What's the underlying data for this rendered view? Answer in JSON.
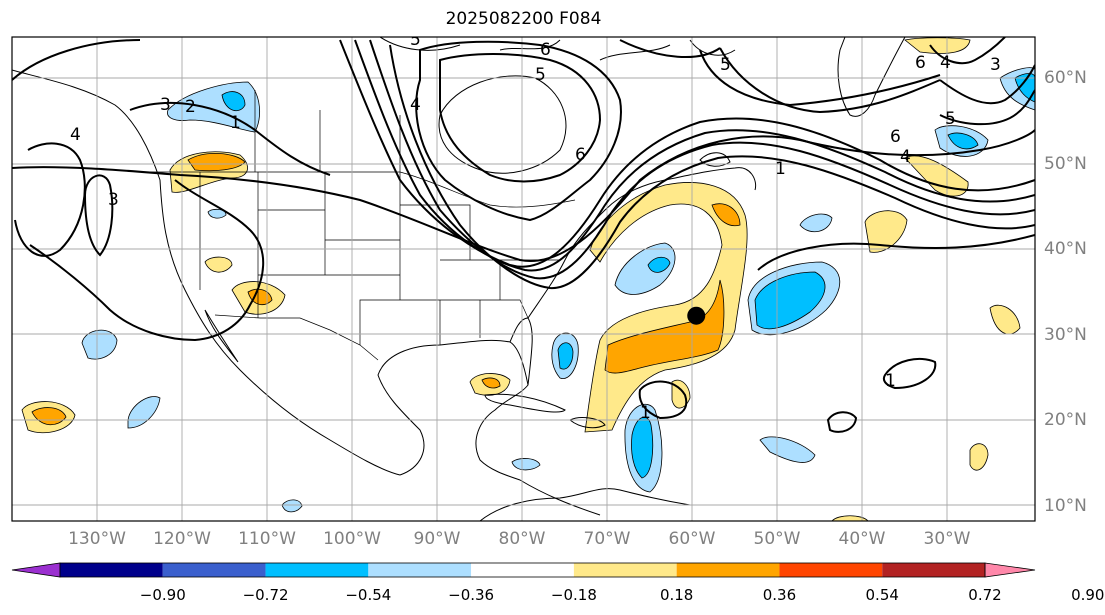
{
  "title": "2025082200 F084",
  "marker": {
    "lon": -59.5,
    "lat": 32.2
  },
  "lon_ticks": [
    {
      "value": -130,
      "label": "130°W"
    },
    {
      "value": -120,
      "label": "120°W"
    },
    {
      "value": -110,
      "label": "110°W"
    },
    {
      "value": -100,
      "label": "100°W"
    },
    {
      "value": -90,
      "label": "90°W"
    },
    {
      "value": -80,
      "label": "80°W"
    },
    {
      "value": -70,
      "label": "70°W"
    },
    {
      "value": -60,
      "label": "60°W"
    },
    {
      "value": -50,
      "label": "50°W"
    },
    {
      "value": -40,
      "label": "40°W"
    },
    {
      "value": -30,
      "label": "30°W"
    }
  ],
  "lat_ticks": [
    {
      "value": 60,
      "label": "60°N"
    },
    {
      "value": 50,
      "label": "50°N"
    },
    {
      "value": 40,
      "label": "40°N"
    },
    {
      "value": 30,
      "label": "30°N"
    },
    {
      "value": 20,
      "label": "20°N"
    },
    {
      "value": 10,
      "label": "10°N"
    }
  ],
  "colorbar": {
    "colors": [
      "#9b30d0",
      "#00008b",
      "#3a5fcd",
      "#00bfff",
      "#addfff",
      "#ffffff",
      "#ffe98a",
      "#ffa500",
      "#ff4500",
      "#b22222",
      "#ff88aa"
    ],
    "labels": [
      "−0.90",
      "−0.72",
      "−0.54",
      "−0.36",
      "−0.18",
      "0.18",
      "0.36",
      "0.54",
      "0.72",
      "0.90"
    ]
  },
  "contour_labels": [
    "1",
    "2",
    "3",
    "4",
    "5",
    "6"
  ]
}
